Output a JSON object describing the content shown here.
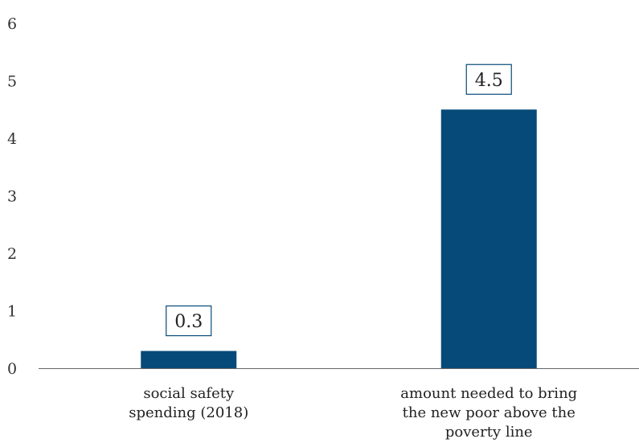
{
  "chart_data": {
    "type": "bar",
    "categories": [
      [
        "social safety",
        "spending (2018)"
      ],
      [
        "amount needed to bring",
        "the new poor above the",
        "poverty line"
      ]
    ],
    "values": [
      0.3,
      4.5
    ],
    "data_labels": [
      "0.3",
      "4.5"
    ],
    "yticks": [
      "0",
      "1",
      "2",
      "3",
      "4",
      "5",
      "6"
    ],
    "ylim": [
      0,
      6
    ],
    "grid": false,
    "bar_color": "#064a7a",
    "label_border_color": "#064a7a"
  }
}
